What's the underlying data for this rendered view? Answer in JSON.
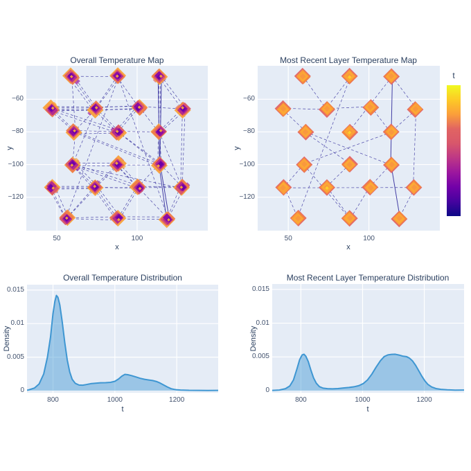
{
  "figure": {
    "background": "#ffffff",
    "plot_background": "#e5ecf6",
    "grid_color": "#ffffff"
  },
  "colors": {
    "text": "#2a3f5f",
    "tick_text": "#42526e",
    "edge_line": "#312a9b",
    "density_line": "#3e96d2",
    "density_fill": "rgba(62,150,210,0.45)",
    "plasma": [
      "#0d0887",
      "#46039f",
      "#7201a8",
      "#9c179e",
      "#bd3786",
      "#d8576b",
      "#e16462",
      "#fb9f3a",
      "#fdca26",
      "#f0f921"
    ]
  },
  "colorbar": {
    "label": "t"
  },
  "chart_data": [
    {
      "id": "overall_map",
      "type": "scatter",
      "title": "Overall Temperature Map",
      "xlabel": "x",
      "ylabel": "y",
      "x_range": [
        31,
        144
      ],
      "y_range": [
        -140.5,
        -39.5
      ],
      "x_ticks": [
        {
          "v": 50,
          "label": "50"
        },
        {
          "v": 100,
          "label": "100"
        }
      ],
      "y_ticks": [
        {
          "v": -60,
          "label": "−60"
        },
        {
          "v": -80,
          "label": "−80"
        },
        {
          "v": -100,
          "label": "−100"
        },
        {
          "v": -120,
          "label": "−120"
        }
      ],
      "marker_symbol": "diamond",
      "marker_style": "cluster-hot-rim-purple-core",
      "marker_layers": [
        [
          12,
          "#f9a13b"
        ],
        [
          10.5,
          "#ee7a4b"
        ],
        [
          9,
          "#d8576b"
        ],
        [
          7.5,
          "#b12a90"
        ],
        [
          6,
          "#8b0aa5"
        ],
        [
          4,
          "#6a00a8"
        ],
        [
          2.4,
          "#fca636"
        ]
      ],
      "stray_colors": [
        "#e16462",
        "#9c179e",
        "#fb9f3a"
      ],
      "nodes": [
        [
          59,
          -46
        ],
        [
          88,
          -46
        ],
        [
          114,
          -46
        ],
        [
          47,
          -66
        ],
        [
          74,
          -66
        ],
        [
          101,
          -65
        ],
        [
          129,
          -66
        ],
        [
          61,
          -80
        ],
        [
          88,
          -80
        ],
        [
          114,
          -80
        ],
        [
          60,
          -100
        ],
        [
          88,
          -100
        ],
        [
          114,
          -100
        ],
        [
          47,
          -114
        ],
        [
          74,
          -114
        ],
        [
          101,
          -114
        ],
        [
          128,
          -114
        ],
        [
          56,
          -133
        ],
        [
          88,
          -133
        ],
        [
          119,
          -133
        ]
      ],
      "edges": [
        [
          0,
          4,
          3
        ],
        [
          0,
          1,
          1
        ],
        [
          1,
          4,
          2
        ],
        [
          1,
          5,
          1
        ],
        [
          2,
          9,
          2
        ],
        [
          2,
          6,
          2
        ],
        [
          3,
          4,
          3
        ],
        [
          3,
          5,
          2
        ],
        [
          3,
          7,
          2
        ],
        [
          4,
          5,
          2
        ],
        [
          4,
          7,
          1
        ],
        [
          4,
          8,
          2
        ],
        [
          5,
          6,
          1
        ],
        [
          5,
          9,
          1
        ],
        [
          6,
          9,
          2
        ],
        [
          7,
          8,
          2
        ],
        [
          7,
          10,
          1
        ],
        [
          8,
          9,
          1
        ],
        [
          8,
          12,
          2
        ],
        [
          9,
          12,
          2
        ],
        [
          10,
          11,
          2
        ],
        [
          10,
          14,
          3
        ],
        [
          10,
          16,
          1
        ],
        [
          11,
          12,
          1
        ],
        [
          11,
          14,
          2
        ],
        [
          11,
          15,
          2
        ],
        [
          12,
          15,
          1
        ],
        [
          12,
          16,
          1
        ],
        [
          13,
          14,
          2
        ],
        [
          13,
          16,
          1
        ],
        [
          13,
          17,
          3
        ],
        [
          14,
          15,
          1
        ],
        [
          14,
          17,
          2
        ],
        [
          14,
          18,
          3
        ],
        [
          15,
          16,
          1
        ],
        [
          15,
          18,
          2
        ],
        [
          16,
          19,
          2
        ],
        [
          17,
          18,
          2
        ],
        [
          18,
          19,
          2
        ],
        [
          1,
          17,
          1
        ],
        [
          1,
          19,
          1
        ],
        [
          6,
          16,
          2
        ],
        [
          0,
          7,
          1
        ],
        [
          5,
          8,
          2
        ],
        [
          9,
          16,
          1
        ],
        [
          10,
          15,
          2
        ],
        [
          3,
          8,
          2
        ],
        [
          7,
          12,
          2
        ],
        [
          11,
          19,
          1
        ],
        [
          4,
          10,
          1
        ]
      ],
      "solid_edges": [
        [
          2,
          12,
          2
        ],
        [
          12,
          19,
          2
        ]
      ]
    },
    {
      "id": "recent_map",
      "type": "scatter",
      "title": "Most Recent Layer Temperature Map",
      "xlabel": "x",
      "ylabel": "y",
      "x_range": [
        31,
        144
      ],
      "y_range": [
        -140.5,
        -39.5
      ],
      "x_ticks": [
        {
          "v": 50,
          "label": "50"
        },
        {
          "v": 100,
          "label": "100"
        }
      ],
      "y_ticks": [
        {
          "v": -60,
          "label": "−60"
        },
        {
          "v": -80,
          "label": "−80"
        },
        {
          "v": -100,
          "label": "−100"
        },
        {
          "v": -120,
          "label": "−120"
        }
      ],
      "marker_symbol": "diamond",
      "marker_style": "orange-red-rim",
      "marker_layers": [
        [
          12,
          "#e16462"
        ],
        [
          10.5,
          "#f3853f"
        ],
        [
          9,
          "#fb9f3a"
        ],
        [
          7,
          "#fcab33"
        ],
        [
          4.5,
          "#f9973f"
        ]
      ],
      "core_highlight": "#fdd02b",
      "yellow_core_nodes": [
        1,
        8,
        14
      ],
      "nodes": [
        [
          59,
          -46
        ],
        [
          88,
          -46
        ],
        [
          114,
          -46
        ],
        [
          47,
          -66
        ],
        [
          74,
          -66
        ],
        [
          101,
          -65
        ],
        [
          129,
          -66
        ],
        [
          61,
          -80
        ],
        [
          88,
          -80
        ],
        [
          114,
          -80
        ],
        [
          60,
          -100
        ],
        [
          88,
          -100
        ],
        [
          114,
          -100
        ],
        [
          47,
          -114
        ],
        [
          74,
          -114
        ],
        [
          101,
          -114
        ],
        [
          128,
          -114
        ],
        [
          56,
          -133
        ],
        [
          88,
          -133
        ],
        [
          119,
          -133
        ]
      ],
      "edges": [
        [
          0,
          4,
          1
        ],
        [
          1,
          4,
          1
        ],
        [
          3,
          4,
          1
        ],
        [
          4,
          5,
          1
        ],
        [
          3,
          7,
          1
        ],
        [
          7,
          11,
          1
        ],
        [
          7,
          12,
          1
        ],
        [
          9,
          10,
          1
        ],
        [
          10,
          13,
          1
        ],
        [
          13,
          17,
          1
        ],
        [
          11,
          14,
          1
        ],
        [
          14,
          18,
          1
        ],
        [
          15,
          18,
          1
        ],
        [
          12,
          15,
          1
        ],
        [
          5,
          9,
          1
        ],
        [
          2,
          8,
          1
        ],
        [
          6,
          9,
          1
        ],
        [
          2,
          6,
          1
        ],
        [
          16,
          19,
          1
        ],
        [
          6,
          16,
          1
        ],
        [
          13,
          16,
          1
        ],
        [
          1,
          17,
          1
        ],
        [
          10,
          18,
          1
        ]
      ],
      "solid_edges": [
        [
          2,
          12,
          1
        ],
        [
          12,
          19,
          1
        ]
      ]
    },
    {
      "id": "overall_distribution",
      "type": "area",
      "title": "Overall Temperature Distribution",
      "xlabel": "t",
      "ylabel": "Density",
      "x_range": [
        716,
        1334
      ],
      "y_range": [
        -0.0003,
        0.0158
      ],
      "x_ticks": [
        {
          "v": 800,
          "label": "800"
        },
        {
          "v": 1000,
          "label": "1000"
        },
        {
          "v": 1200,
          "label": "1200"
        }
      ],
      "y_ticks": [
        {
          "v": 0,
          "label": "0"
        },
        {
          "v": 0.005,
          "label": "0.005"
        },
        {
          "v": 0.01,
          "label": "0.01"
        },
        {
          "v": 0.015,
          "label": "0.015"
        }
      ],
      "points": [
        [
          700,
          5e-05
        ],
        [
          720,
          0.0001
        ],
        [
          740,
          0.0004
        ],
        [
          755,
          0.001
        ],
        [
          770,
          0.0025
        ],
        [
          782,
          0.005
        ],
        [
          792,
          0.008
        ],
        [
          800,
          0.0115
        ],
        [
          806,
          0.0133
        ],
        [
          811,
          0.0142
        ],
        [
          816,
          0.0139
        ],
        [
          822,
          0.0128
        ],
        [
          830,
          0.0102
        ],
        [
          838,
          0.0072
        ],
        [
          846,
          0.0046
        ],
        [
          854,
          0.0028
        ],
        [
          862,
          0.0017
        ],
        [
          872,
          0.0011
        ],
        [
          884,
          0.00085
        ],
        [
          896,
          0.00082
        ],
        [
          908,
          0.00092
        ],
        [
          922,
          0.00105
        ],
        [
          938,
          0.00112
        ],
        [
          954,
          0.00118
        ],
        [
          970,
          0.0012
        ],
        [
          986,
          0.00125
        ],
        [
          1000,
          0.0014
        ],
        [
          1012,
          0.00175
        ],
        [
          1022,
          0.00215
        ],
        [
          1032,
          0.00243
        ],
        [
          1042,
          0.00238
        ],
        [
          1054,
          0.00225
        ],
        [
          1068,
          0.00205
        ],
        [
          1082,
          0.00185
        ],
        [
          1096,
          0.0017
        ],
        [
          1110,
          0.0016
        ],
        [
          1122,
          0.00152
        ],
        [
          1134,
          0.00138
        ],
        [
          1146,
          0.00115
        ],
        [
          1158,
          0.00085
        ],
        [
          1170,
          0.00055
        ],
        [
          1182,
          0.0003
        ],
        [
          1196,
          0.00016
        ],
        [
          1212,
          0.0001
        ],
        [
          1240,
          6e-05
        ],
        [
          1270,
          5e-05
        ],
        [
          1300,
          4e-05
        ],
        [
          1334,
          5e-05
        ]
      ]
    },
    {
      "id": "recent_distribution",
      "type": "area",
      "title": "Most Recent Layer Temperature Distribution",
      "xlabel": "t",
      "ylabel": "Density",
      "x_range": [
        707,
        1329
      ],
      "y_range": [
        -0.0003,
        0.0158
      ],
      "x_ticks": [
        {
          "v": 800,
          "label": "800"
        },
        {
          "v": 1000,
          "label": "1000"
        },
        {
          "v": 1200,
          "label": "1200"
        }
      ],
      "y_ticks": [
        {
          "v": 0,
          "label": "0"
        },
        {
          "v": 0.005,
          "label": "0.005"
        },
        {
          "v": 0.01,
          "label": "0.01"
        },
        {
          "v": 0.015,
          "label": "0.015"
        }
      ],
      "points": [
        [
          707,
          4e-05
        ],
        [
          730,
          0.0001
        ],
        [
          750,
          0.0003
        ],
        [
          764,
          0.0007
        ],
        [
          776,
          0.0016
        ],
        [
          787,
          0.0032
        ],
        [
          796,
          0.0046
        ],
        [
          804,
          0.0053
        ],
        [
          810,
          0.0054
        ],
        [
          816,
          0.0051
        ],
        [
          824,
          0.0043
        ],
        [
          832,
          0.0031
        ],
        [
          841,
          0.0019
        ],
        [
          850,
          0.0011
        ],
        [
          860,
          0.0006
        ],
        [
          872,
          0.00038
        ],
        [
          886,
          0.0003
        ],
        [
          902,
          0.00028
        ],
        [
          920,
          0.00032
        ],
        [
          938,
          0.0004
        ],
        [
          956,
          0.00048
        ],
        [
          972,
          0.00058
        ],
        [
          988,
          0.00075
        ],
        [
          1002,
          0.00105
        ],
        [
          1016,
          0.0016
        ],
        [
          1030,
          0.00245
        ],
        [
          1044,
          0.0035
        ],
        [
          1058,
          0.00445
        ],
        [
          1070,
          0.00505
        ],
        [
          1082,
          0.0053
        ],
        [
          1094,
          0.00538
        ],
        [
          1106,
          0.0054
        ],
        [
          1118,
          0.00528
        ],
        [
          1130,
          0.00512
        ],
        [
          1142,
          0.00505
        ],
        [
          1152,
          0.00482
        ],
        [
          1162,
          0.0044
        ],
        [
          1172,
          0.00375
        ],
        [
          1182,
          0.00295
        ],
        [
          1192,
          0.00215
        ],
        [
          1202,
          0.00145
        ],
        [
          1212,
          0.00092
        ],
        [
          1224,
          0.00055
        ],
        [
          1238,
          0.00032
        ],
        [
          1254,
          0.0002
        ],
        [
          1274,
          0.00013
        ],
        [
          1300,
          8e-05
        ],
        [
          1329,
          0.0001
        ]
      ]
    }
  ]
}
